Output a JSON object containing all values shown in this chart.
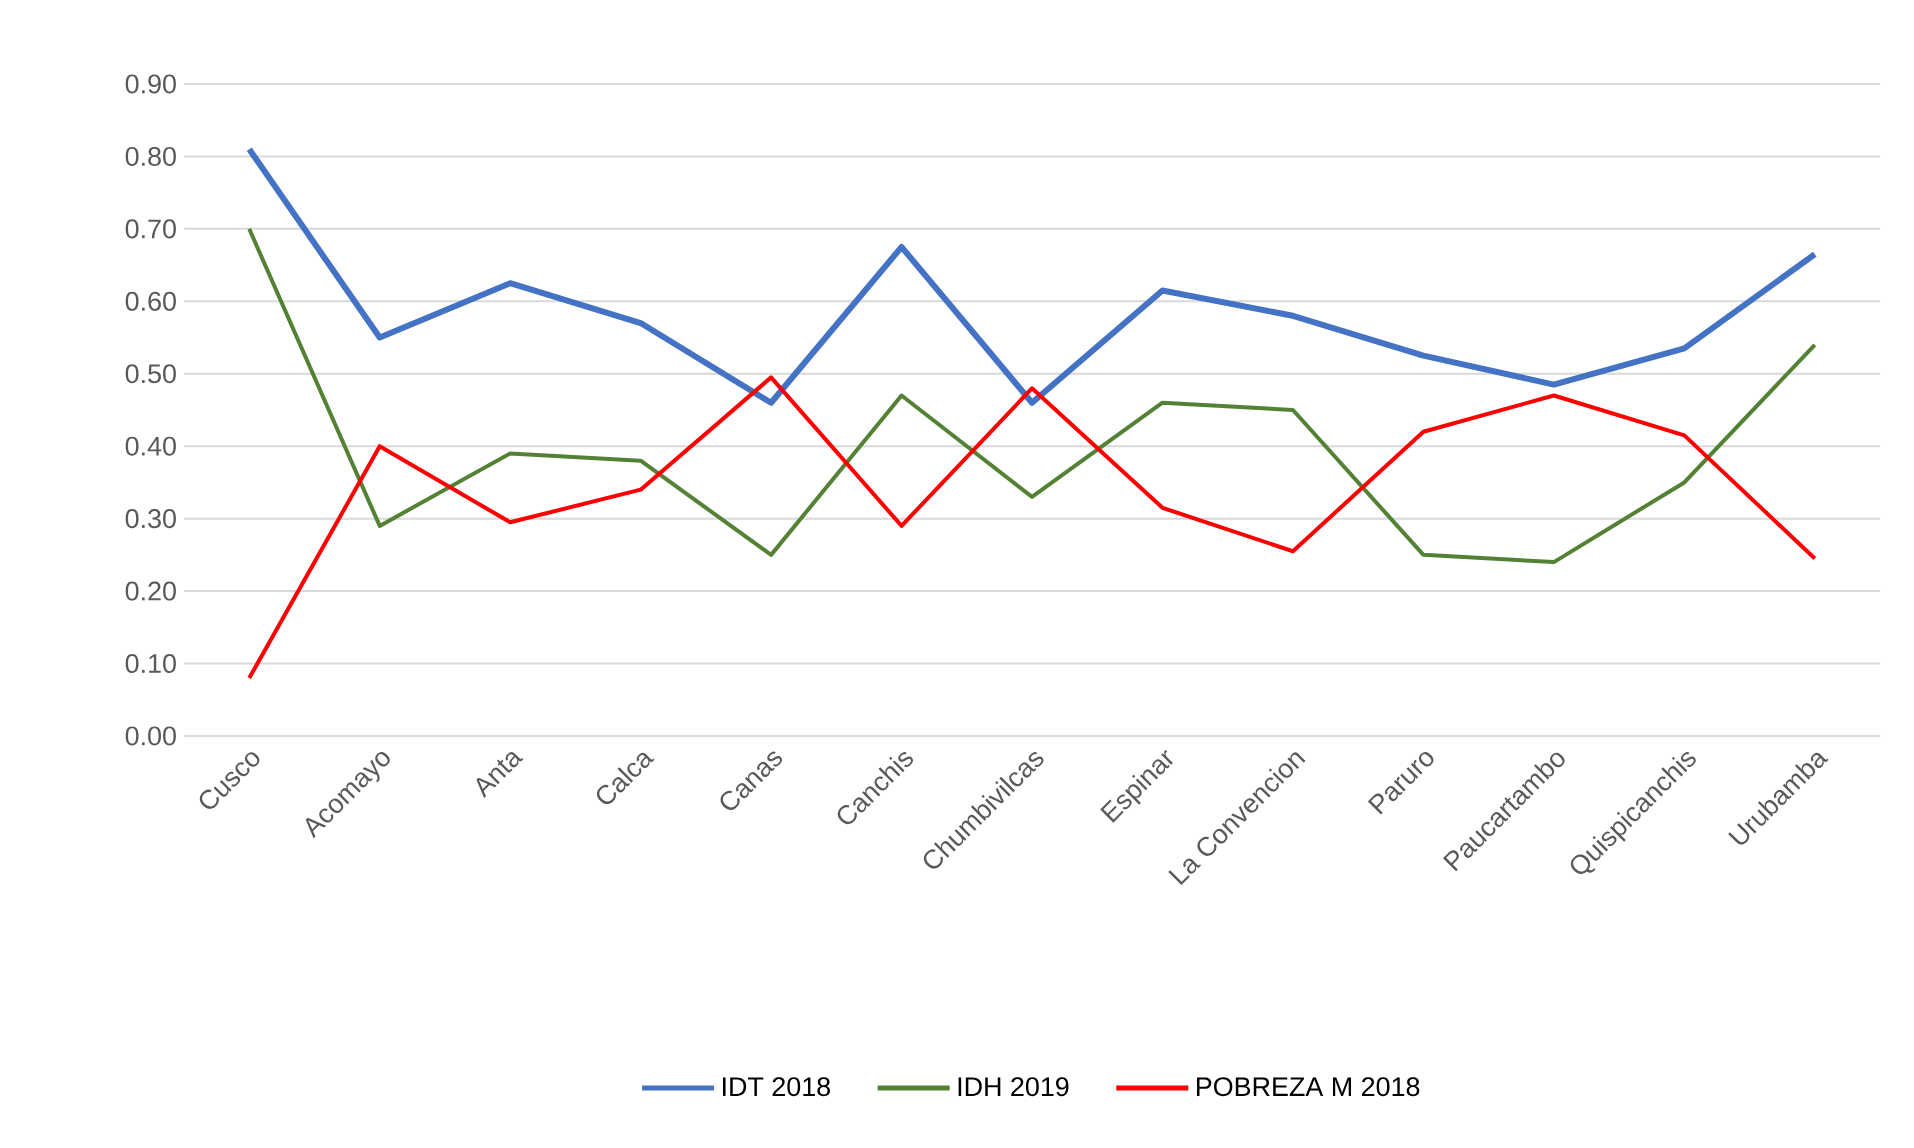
{
  "chart_data": {
    "type": "line",
    "categories": [
      "Cusco",
      "Acomayo",
      "Anta",
      "Calca",
      "Canas",
      "Canchis",
      "Chumbivilcas",
      "Espinar",
      "La Convencion",
      "Paruro",
      "Paucartambo",
      "Quispicanchis",
      "Urubamba"
    ],
    "series": [
      {
        "name": "IDT 2018",
        "color": "#4472c4",
        "values": [
          0.81,
          0.55,
          0.625,
          0.57,
          0.46,
          0.675,
          0.46,
          0.615,
          0.58,
          0.525,
          0.485,
          0.535,
          0.665
        ]
      },
      {
        "name": "IDH 2019",
        "color": "#548235",
        "values": [
          0.7,
          0.29,
          0.39,
          0.38,
          0.25,
          0.47,
          0.33,
          0.46,
          0.45,
          0.25,
          0.24,
          0.35,
          0.54
        ]
      },
      {
        "name": "POBREZA M 2018",
        "color": "#ff0000",
        "values": [
          0.08,
          0.4,
          0.295,
          0.34,
          0.495,
          0.29,
          0.48,
          0.315,
          0.255,
          0.42,
          0.47,
          0.415,
          0.245
        ]
      }
    ],
    "ylim": [
      0,
      0.9
    ],
    "yticks": [
      {
        "value": 0,
        "label": "0.00"
      },
      {
        "value": 0.1,
        "label": "0.10"
      },
      {
        "value": 0.2,
        "label": "0.20"
      },
      {
        "value": 0.3,
        "label": "0.30"
      },
      {
        "value": 0.4,
        "label": "0.40"
      },
      {
        "value": 0.5,
        "label": "0.50"
      },
      {
        "value": 0.6,
        "label": "0.60"
      },
      {
        "value": 0.7,
        "label": "0.70"
      },
      {
        "value": 0.8,
        "label": "0.80"
      },
      {
        "value": 0.9,
        "label": "0.90"
      }
    ],
    "grid": "y",
    "legend": "bottom",
    "marker": "none",
    "line_style": "solid"
  }
}
